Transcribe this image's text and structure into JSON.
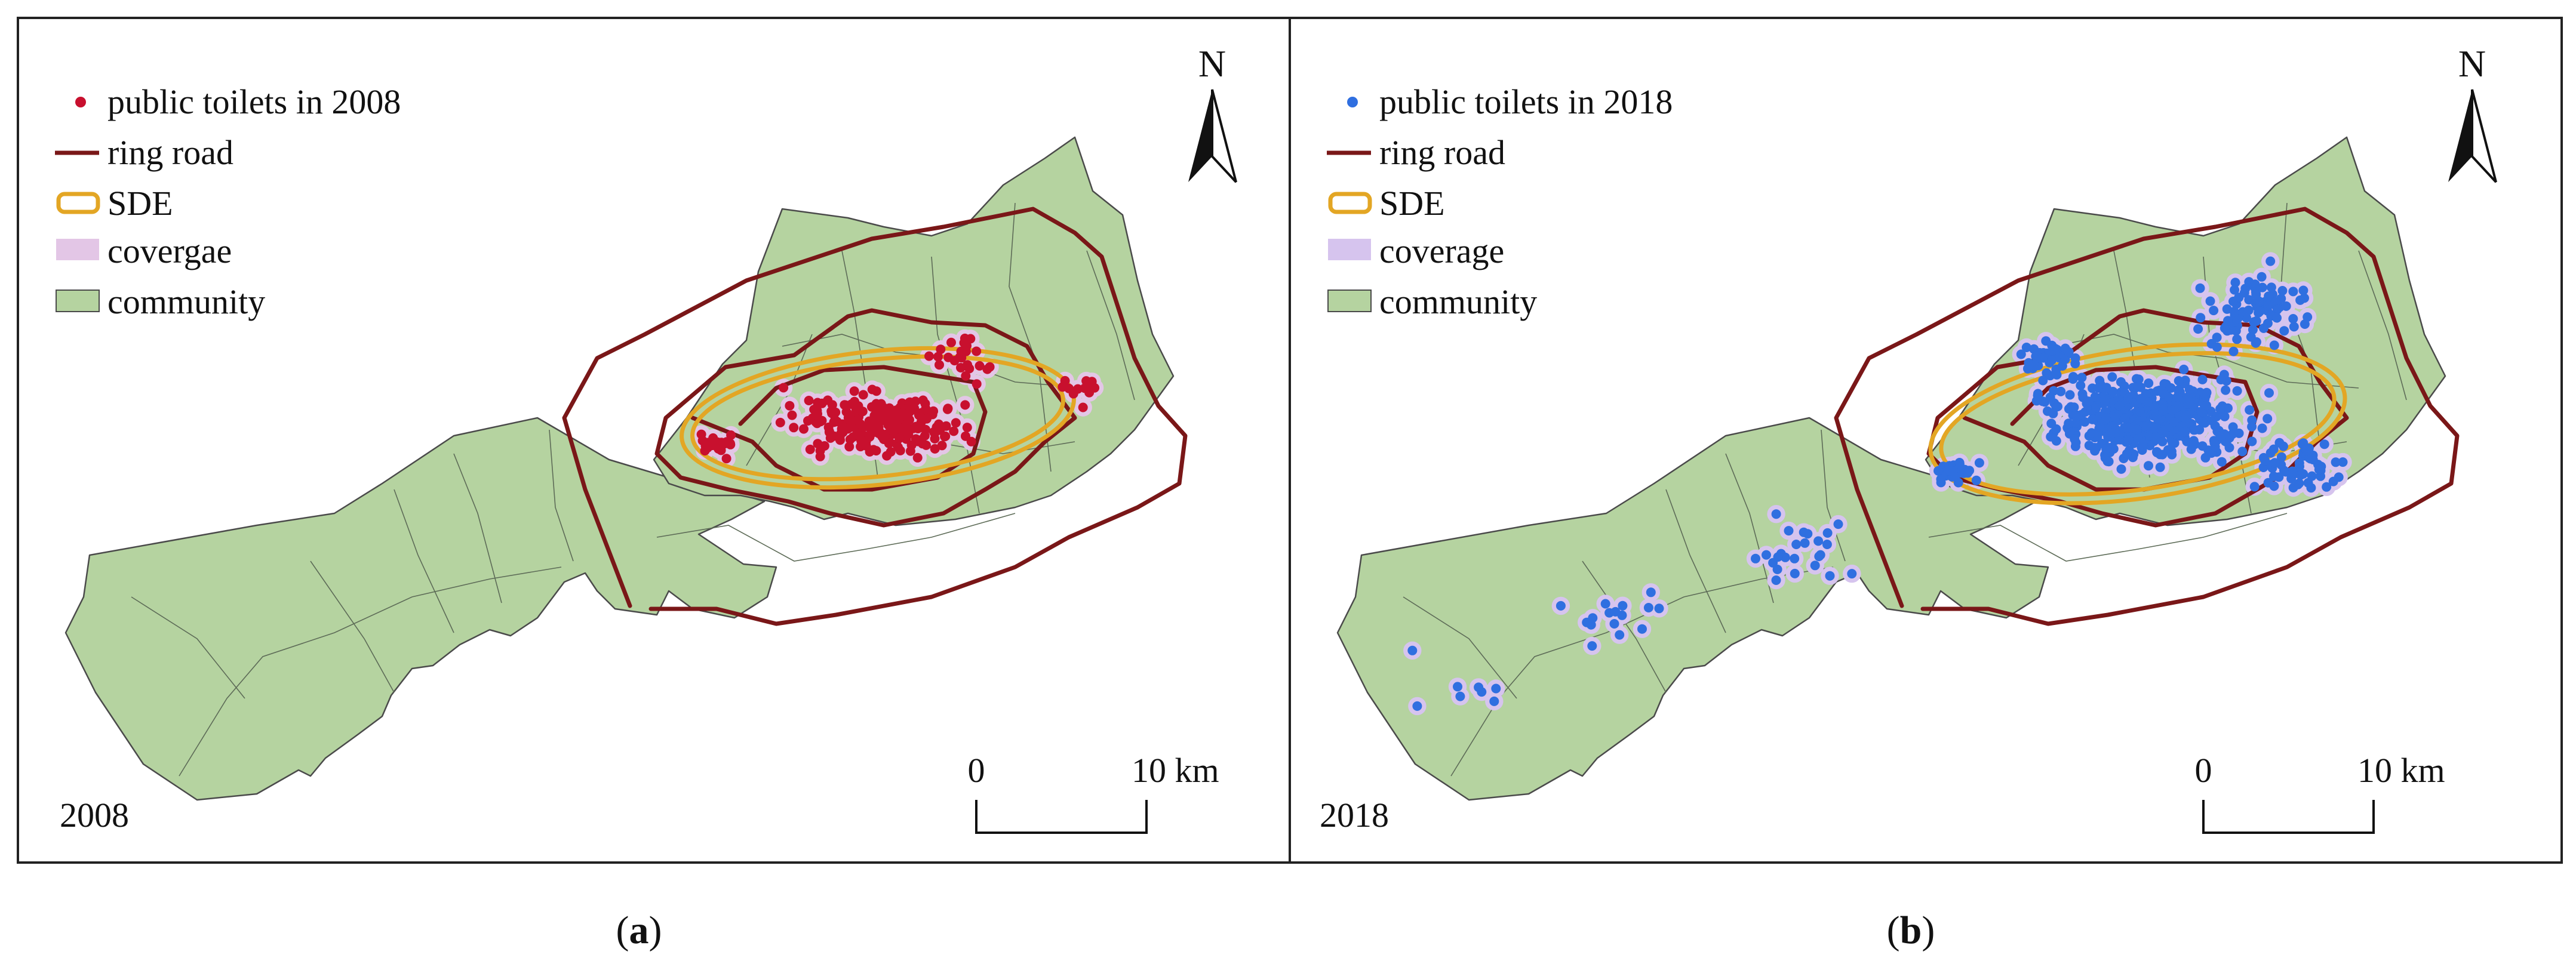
{
  "panels": [
    {
      "id": "a",
      "year_label": "2008",
      "legend": {
        "points": "public toilets in 2008",
        "ring_road": "ring road",
        "sde": "SDE",
        "coverage": "covergae",
        "community": "community"
      },
      "point_color": "#c8102e",
      "coverage_color": "#e3c6e6",
      "north": "N",
      "scale": {
        "start": "0",
        "end": "10 km"
      },
      "caption_letter": "a"
    },
    {
      "id": "b",
      "year_label": "2018",
      "legend": {
        "points": "public toilets in 2018",
        "ring_road": "ring road",
        "sde": "SDE",
        "coverage": "coverage",
        "community": "community"
      },
      "point_color": "#2f6fe0",
      "coverage_color": "#d6c4ee",
      "north": "N",
      "scale": {
        "start": "0",
        "end": "10 km"
      },
      "caption_letter": "b"
    }
  ],
  "colors": {
    "community_fill": "#b5d3a0",
    "ring_road": "#7a1718",
    "sde": "#e3a624"
  }
}
